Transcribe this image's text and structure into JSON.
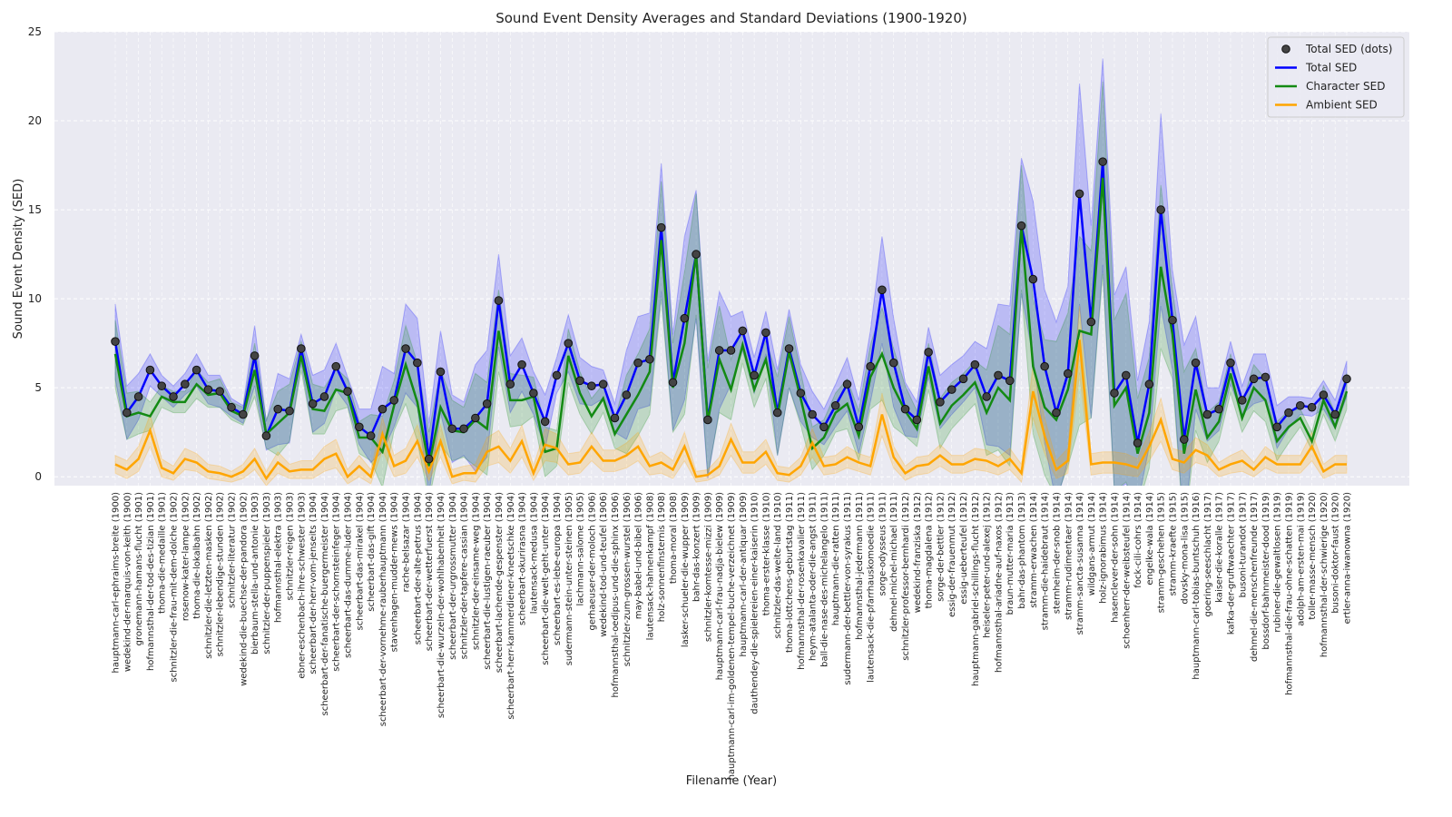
{
  "chart_data": {
    "type": "line",
    "title": "Sound Event Density Averages and Standard Deviations (1900-1920)",
    "xlabel": "Filename (Year)",
    "ylabel": "Sound Event Density (SED)",
    "ylim": [
      -0.5,
      25
    ],
    "yticks": [
      0,
      5,
      10,
      15,
      20,
      25
    ],
    "grid": true,
    "legend": "upper right",
    "scatter_name": "Total SED (dots)",
    "categories": [
      "hauptmann-carl-ephraims-breite (1900)",
      "wedekind-der-marquis-von-keith (1900)",
      "gronemann-hamans-flucht (1901)",
      "hofmannsthal-der-tod-des-tizian (1901)",
      "thoma-die-medaille (1901)",
      "schnitzler-die-frau-mit-dem-dolche (1902)",
      "rosenow-kater-lampe (1902)",
      "thoma-die-lokalbahn (1902)",
      "schnitzler-die-letzten-masken (1902)",
      "schnitzler-lebendige-stunden (1902)",
      "schnitzler-literatur (1902)",
      "wedekind-die-buechse-der-pandora (1902)",
      "bierbaum-stella-und-antonie (1903)",
      "schnitzler-der-puppenspieler (1903)",
      "hofmannsthal-elektra (1903)",
      "schnitzler-reigen (1903)",
      "ebner-eschenbach-ihre-schwester (1903)",
      "scheerbart-der-herr-vom-jenseits (1904)",
      "scheerbart-der-fanatische-buergermeister (1904)",
      "scheerbart-der-schornsteinfeger (1904)",
      "scheerbart-das-dumme-luder (1904)",
      "scheerbart-das-mirakel (1904)",
      "scheerbart-das-gift (1904)",
      "scheerbart-der-vornehme-rauberhauptmann (1904)",
      "stavenhagen-mudder-mews (1904)",
      "rache-belsazar (1904)",
      "scheerbart-der-alte-petrus (1904)",
      "scheerbart-der-wetterfuerst (1904)",
      "scheerbart-die-wurzeln-der-wohlhabenheit (1904)",
      "scheerbart-der-urgrossmutter (1904)",
      "schnitzler-der-tapfere-cassian (1904)",
      "schnitzler-der-einsame-weg (1904)",
      "scheerbart-die-lustigen-raeuber (1904)",
      "scheerbart-lachende-gespenster (1904)",
      "scheerbart-herr-kammerdiener-kneetschke (1904)",
      "scheerbart-okurirasna (1904)",
      "lautensack-medusa (1904)",
      "scheerbart-die-welt-geht-unter (1904)",
      "scheerbart-es-lebe-europa (1904)",
      "sudermann-stein-unter-steinen (1905)",
      "lachmann-salome (1905)",
      "gerhaeuser-der-moloch (1906)",
      "wedekind-tod-und-teufel (1906)",
      "hofmannsthal-oedipus-und-die-sphinx (1906)",
      "schnitzler-zum-grossen-wurstel (1906)",
      "may-babel-und-bibel (1906)",
      "lautensack-hahnenkampf (1908)",
      "holz-sonnenfinsternis (1908)",
      "thoma-moral (1908)",
      "lasker-schueler-die-wupper (1909)",
      "bahr-das-konzert (1909)",
      "schnitzler-komtesse-mizzi (1909)",
      "hauptmann-carl-frau-nadja-bielew (1909)",
      "hauptmann-carl-im-goldenen-tempel-buche-verzeichnet (1909)",
      "hauptmann-carl-der-antiquar (1909)",
      "dauthendey-die-spielereien-einer-kaiserin (1910)",
      "thoma-erster-klasse (1910)",
      "schnitzler-das-weite-land (1910)",
      "thoma-lottchens-geburtstag (1911)",
      "hofmannsthal-der-rosenkavalier (1911)",
      "heym-atalanta-oder-die-angst (1911)",
      "ball-die-nase-des-michelangelo (1911)",
      "hauptmann-die-ratten (1911)",
      "sudermann-der-bettler-von-syrakus (1911)",
      "hofmannsthal-jedermann (1911)",
      "lautensack-die-pfarrhauskomoedie (1911)",
      "sorge-odysseus (1911)",
      "dehmel-michel-michael (1911)",
      "schnitzler-professor-bernhardi (1912)",
      "wedekind-franziska (1912)",
      "thoma-magdalena (1912)",
      "sorge-der-bettler (1912)",
      "essig-der-frauenmut (1912)",
      "essig-ueberteufel (1912)",
      "hauptmann-gabriel-schillings-flucht (1912)",
      "heiseler-peter-und-alexej (1912)",
      "hofmannsthal-ariadne-auf-naxos (1912)",
      "braun-mutter-maria (1913)",
      "bahr-das-phantom (1913)",
      "stramm-erwachen (1914)",
      "stramm-die-haidebraut (1914)",
      "sternheim-der-snob (1914)",
      "stramm-rudimentaer (1914)",
      "stramm-sancta-susanna (1914)",
      "wildgans-armut (1914)",
      "holz-ignorabimus (1914)",
      "hasenclever-der-sohn (1914)",
      "schoenherr-der-weibsteufel (1914)",
      "fock-cili-cohrs (1914)",
      "engelke-wala (1914)",
      "stramm-geschehen (1915)",
      "stramm-kraefte (1915)",
      "dovsky-mona-lisa (1915)",
      "hauptmann-carl-tobias-buntschuh (1916)",
      "goering-seeschlacht (1917)",
      "kaiser-die-koralle (1917)",
      "kafka-der-gruftwaechter (1917)",
      "busoni-turandot (1917)",
      "dehmel-die-menschenfreunde (1917)",
      "bossdorf-bahnmeister-dood (1919)",
      "rubiner-die-gewaltlosen (1919)",
      "hofmannsthal-die-frau-ohne-schatten (1919)",
      "adolph-am-ersten-mai (1919)",
      "toller-masse-mensch (1920)",
      "hofmannsthal-der-schwierige (1920)",
      "busoni-doktor-faust (1920)",
      "ertler-anna-iwanowna (1920)"
    ],
    "series": [
      {
        "name": "Total SED",
        "color": "#0000ff",
        "values": [
          7.6,
          3.6,
          4.5,
          6.0,
          5.1,
          4.5,
          5.2,
          6.0,
          4.9,
          4.8,
          3.9,
          3.5,
          6.8,
          2.3,
          3.8,
          3.7,
          7.2,
          4.1,
          4.5,
          6.2,
          4.8,
          2.8,
          2.3,
          3.8,
          4.3,
          7.2,
          6.4,
          1.0,
          5.9,
          2.7,
          2.7,
          3.3,
          4.1,
          9.9,
          5.2,
          6.3,
          4.7,
          3.1,
          5.7,
          7.5,
          5.4,
          5.1,
          5.2,
          3.3,
          4.6,
          6.4,
          6.6,
          14.0,
          5.3,
          8.9,
          12.5,
          3.2,
          7.1,
          7.1,
          8.2,
          5.7,
          8.1,
          3.6,
          7.2,
          4.7,
          3.5,
          2.8,
          4.0,
          5.2,
          2.8,
          6.2,
          10.5,
          6.4,
          3.8,
          3.2,
          7.0,
          4.2,
          4.9,
          5.5,
          6.3,
          4.5,
          5.7,
          5.4,
          14.1,
          11.1,
          6.2,
          3.6,
          5.8,
          15.9,
          8.7,
          17.7,
          4.7,
          5.7,
          1.9,
          5.2,
          15.0,
          8.8,
          2.1,
          6.4,
          3.5,
          3.8,
          6.4,
          4.3,
          5.5,
          5.6,
          2.8,
          3.6,
          4.0,
          3.9,
          4.6,
          3.5,
          5.5
        ],
        "std": [
          2.1,
          1.5,
          1.3,
          0.9,
          0.6,
          0.6,
          0.6,
          0.9,
          0.8,
          0.9,
          0.5,
          0.5,
          1.7,
          0.8,
          2.0,
          1.8,
          0.8,
          1.6,
          1.5,
          1.3,
          0.8,
          1.0,
          1.5,
          2.4,
          1.5,
          2.5,
          2.5,
          2.0,
          2.3,
          1.9,
          1.5,
          3.0,
          3.0,
          2.6,
          1.6,
          1.5,
          1.2,
          1.5,
          1.0,
          1.6,
          1.3,
          1.1,
          0.8,
          0.8,
          2.5,
          2.6,
          2.6,
          3.6,
          2.7,
          4.6,
          3.6,
          3.3,
          3.3,
          1.9,
          1.1,
          1.0,
          1.2,
          2.4,
          2.2,
          1.6,
          1.3,
          1.0,
          1.2,
          1.5,
          1.5,
          2.0,
          3.0,
          2.5,
          1.5,
          1.0,
          1.4,
          1.5,
          1.4,
          1.3,
          1.3,
          2.7,
          4.0,
          4.2,
          3.8,
          4.4,
          4.3,
          5.1,
          4.9,
          6.2,
          5.4,
          5.8,
          5.5,
          6.1,
          3.5,
          3.5,
          5.4,
          2.8,
          5.3,
          2.6,
          1.5,
          1.2,
          1.2,
          0.8,
          1.4,
          1.3,
          1.2,
          0.9,
          0.5,
          0.5,
          0.8,
          0.8,
          1.0
        ]
      },
      {
        "name": "Character SED",
        "color": "#138a13",
        "values": [
          6.9,
          3.4,
          3.6,
          3.4,
          4.5,
          4.2,
          4.2,
          5.2,
          4.6,
          4.7,
          3.7,
          3.4,
          6.0,
          2.4,
          3.0,
          3.6,
          6.8,
          3.8,
          3.7,
          4.9,
          4.7,
          2.2,
          2.2,
          1.4,
          4.0,
          6.3,
          4.2,
          0.6,
          3.9,
          2.6,
          2.5,
          3.2,
          2.7,
          8.2,
          4.3,
          4.3,
          4.5,
          1.4,
          1.6,
          6.8,
          4.7,
          3.4,
          4.4,
          2.4,
          3.5,
          4.6,
          5.9,
          13.3,
          5.0,
          7.5,
          12.5,
          3.1,
          6.6,
          4.9,
          7.4,
          4.9,
          6.6,
          3.4,
          7.0,
          4.4,
          1.6,
          2.2,
          3.6,
          4.1,
          2.3,
          5.6,
          6.9,
          5.0,
          3.7,
          2.7,
          6.2,
          3.0,
          4.0,
          4.6,
          5.3,
          3.6,
          5.0,
          4.3,
          14.0,
          6.2,
          3.9,
          3.2,
          4.9,
          8.2,
          8.0,
          16.8,
          4.0,
          5.0,
          1.3,
          3.6,
          11.8,
          8.0,
          1.3,
          4.9,
          2.2,
          3.1,
          5.8,
          3.3,
          5.0,
          4.3,
          2.0,
          2.8,
          3.3,
          2.0,
          4.3,
          2.8,
          4.8
        ],
        "std": [
          1.9,
          1.3,
          1.2,
          0.8,
          0.6,
          0.6,
          0.6,
          0.8,
          0.7,
          0.8,
          0.5,
          0.5,
          1.5,
          0.8,
          1.8,
          1.6,
          0.8,
          1.4,
          1.3,
          1.2,
          0.8,
          0.9,
          1.3,
          2.0,
          1.4,
          2.2,
          2.2,
          1.9,
          2.1,
          1.7,
          1.4,
          2.6,
          2.6,
          2.3,
          1.5,
          1.4,
          1.1,
          1.4,
          1.0,
          1.5,
          1.2,
          1.0,
          0.8,
          0.8,
          2.2,
          2.3,
          2.4,
          3.3,
          2.5,
          4.0,
          3.4,
          3.0,
          3.0,
          1.7,
          1.0,
          1.0,
          1.1,
          2.2,
          2.0,
          1.5,
          1.2,
          1.0,
          1.1,
          1.4,
          1.4,
          1.8,
          2.6,
          2.2,
          1.4,
          1.0,
          1.3,
          1.4,
          1.3,
          1.2,
          1.2,
          2.4,
          3.5,
          3.7,
          3.5,
          3.8,
          3.8,
          4.4,
          4.3,
          5.3,
          4.7,
          5.4,
          4.8,
          5.3,
          3.1,
          3.1,
          4.6,
          2.5,
          4.6,
          2.3,
          1.4,
          1.1,
          1.1,
          0.8,
          1.3,
          1.2,
          1.1,
          0.9,
          0.5,
          0.5,
          0.8,
          0.8,
          1.0
        ]
      },
      {
        "name": "Ambient SED",
        "color": "#ffa500",
        "values": [
          0.7,
          0.4,
          1.0,
          2.6,
          0.5,
          0.2,
          1.0,
          0.8,
          0.3,
          0.2,
          0.0,
          0.3,
          1.0,
          -0.1,
          0.8,
          0.3,
          0.4,
          0.4,
          1.0,
          1.3,
          0.0,
          0.6,
          0.0,
          2.4,
          0.6,
          0.9,
          2.0,
          0.3,
          2.0,
          0.0,
          0.2,
          0.2,
          1.4,
          1.7,
          0.9,
          2.0,
          0.2,
          1.8,
          1.6,
          0.7,
          0.8,
          1.7,
          0.9,
          0.9,
          1.2,
          1.7,
          0.6,
          0.8,
          0.4,
          1.7,
          0.0,
          0.1,
          0.6,
          2.1,
          0.8,
          0.8,
          1.4,
          0.2,
          0.1,
          0.6,
          1.9,
          0.6,
          0.7,
          1.1,
          0.8,
          0.6,
          3.5,
          1.1,
          0.2,
          0.6,
          0.7,
          1.2,
          0.7,
          0.7,
          1.0,
          0.9,
          0.6,
          1.0,
          0.2,
          4.8,
          2.3,
          0.4,
          0.9,
          7.7,
          0.7,
          0.8,
          0.8,
          0.7,
          0.5,
          1.7,
          3.2,
          1.0,
          0.8,
          1.5,
          1.2,
          0.4,
          0.7,
          0.9,
          0.4,
          1.1,
          0.7,
          0.7,
          0.7,
          1.7,
          0.3,
          0.7,
          0.7
        ],
        "std": [
          0.5,
          0.5,
          0.7,
          0.9,
          0.5,
          0.4,
          0.6,
          0.5,
          0.4,
          0.4,
          0.3,
          0.4,
          0.6,
          0.4,
          0.6,
          0.4,
          0.5,
          0.5,
          0.7,
          0.8,
          0.4,
          0.6,
          0.4,
          0.9,
          0.6,
          0.7,
          0.9,
          0.5,
          0.9,
          0.4,
          0.4,
          0.5,
          0.8,
          0.9,
          0.7,
          0.9,
          0.4,
          0.9,
          0.8,
          0.6,
          0.6,
          0.8,
          0.6,
          0.6,
          0.7,
          0.8,
          0.5,
          0.6,
          0.5,
          0.8,
          0.3,
          0.3,
          0.5,
          0.9,
          0.6,
          0.6,
          0.7,
          0.4,
          0.4,
          0.5,
          0.8,
          0.5,
          0.5,
          0.6,
          0.5,
          0.5,
          1.2,
          0.6,
          0.4,
          0.5,
          0.5,
          0.6,
          0.5,
          0.5,
          0.6,
          0.6,
          0.5,
          0.6,
          0.5,
          1.5,
          1.0,
          0.5,
          0.7,
          1.9,
          0.6,
          0.6,
          0.6,
          0.6,
          0.5,
          0.8,
          1.2,
          0.6,
          0.6,
          0.7,
          0.6,
          0.4,
          0.5,
          0.6,
          0.4,
          0.6,
          0.5,
          0.5,
          0.5,
          0.8,
          0.4,
          0.5,
          0.5
        ]
      }
    ]
  }
}
